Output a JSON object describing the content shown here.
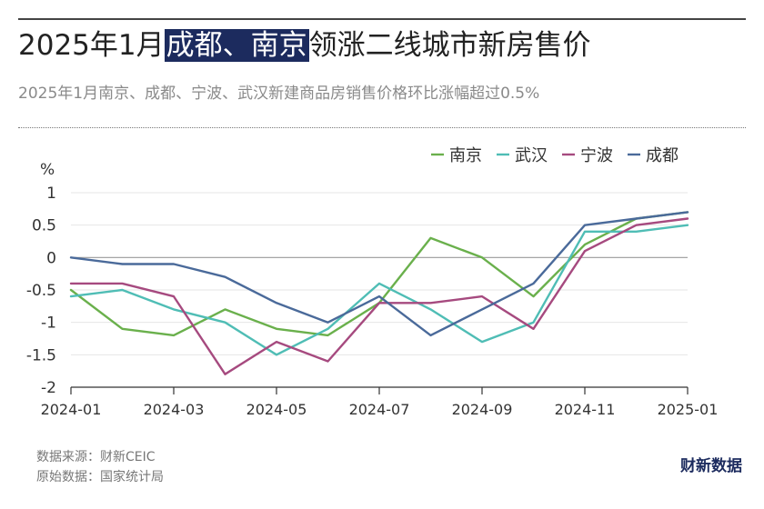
{
  "header": {
    "title_pre": "2025年1月",
    "title_highlight": "成都、南京",
    "title_post": "领涨二线城市新房售价",
    "subtitle": "2025年1月南京、成都、宁波、武汉新建商品房销售价格环比涨幅超过0.5%"
  },
  "chart_data": {
    "type": "line",
    "title": "",
    "ylabel": "%",
    "xlabel": "",
    "ylim": [
      -2,
      1
    ],
    "yticks": [
      1,
      0.5,
      0,
      -0.5,
      -1,
      -1.5,
      -2
    ],
    "ytick_labels": [
      "1",
      "0.5",
      "0",
      "-0.5",
      "-1",
      "-1.5",
      "-2"
    ],
    "x": [
      "2024-01",
      "2024-02",
      "2024-03",
      "2024-04",
      "2024-05",
      "2024-06",
      "2024-07",
      "2024-08",
      "2024-09",
      "2024-10",
      "2024-11",
      "2024-12",
      "2025-01"
    ],
    "xtick_labels": [
      "2024-01",
      "2024-03",
      "2024-05",
      "2024-07",
      "2024-09",
      "2024-11",
      "2025-01"
    ],
    "grid": "horizontal",
    "legend_position": "top-right",
    "series": [
      {
        "name": "南京",
        "color": "#6ab04c",
        "values": [
          -0.5,
          -1.1,
          -1.2,
          -0.8,
          -1.1,
          -1.2,
          -0.7,
          0.3,
          0.0,
          -0.6,
          0.2,
          0.6,
          0.7
        ]
      },
      {
        "name": "武汉",
        "color": "#4fbdb5",
        "values": [
          -0.6,
          -0.5,
          -0.8,
          -1.0,
          -1.5,
          -1.1,
          -0.4,
          -0.8,
          -1.3,
          -1.0,
          0.4,
          0.4,
          0.5
        ]
      },
      {
        "name": "宁波",
        "color": "#a64a7f",
        "values": [
          -0.4,
          -0.4,
          -0.6,
          -1.8,
          -1.3,
          -1.6,
          -0.7,
          -0.7,
          -0.6,
          -1.1,
          0.1,
          0.5,
          0.6
        ]
      },
      {
        "name": "成都",
        "color": "#4a6a9a",
        "values": [
          0.0,
          -0.1,
          -0.1,
          -0.3,
          -0.7,
          -1.0,
          -0.6,
          -1.2,
          -0.8,
          -0.4,
          0.5,
          0.6,
          0.7
        ]
      }
    ]
  },
  "footer": {
    "source": "数据来源：财新CEIC",
    "origin": "原始数据：国家统计局",
    "logo": "财新数据"
  }
}
